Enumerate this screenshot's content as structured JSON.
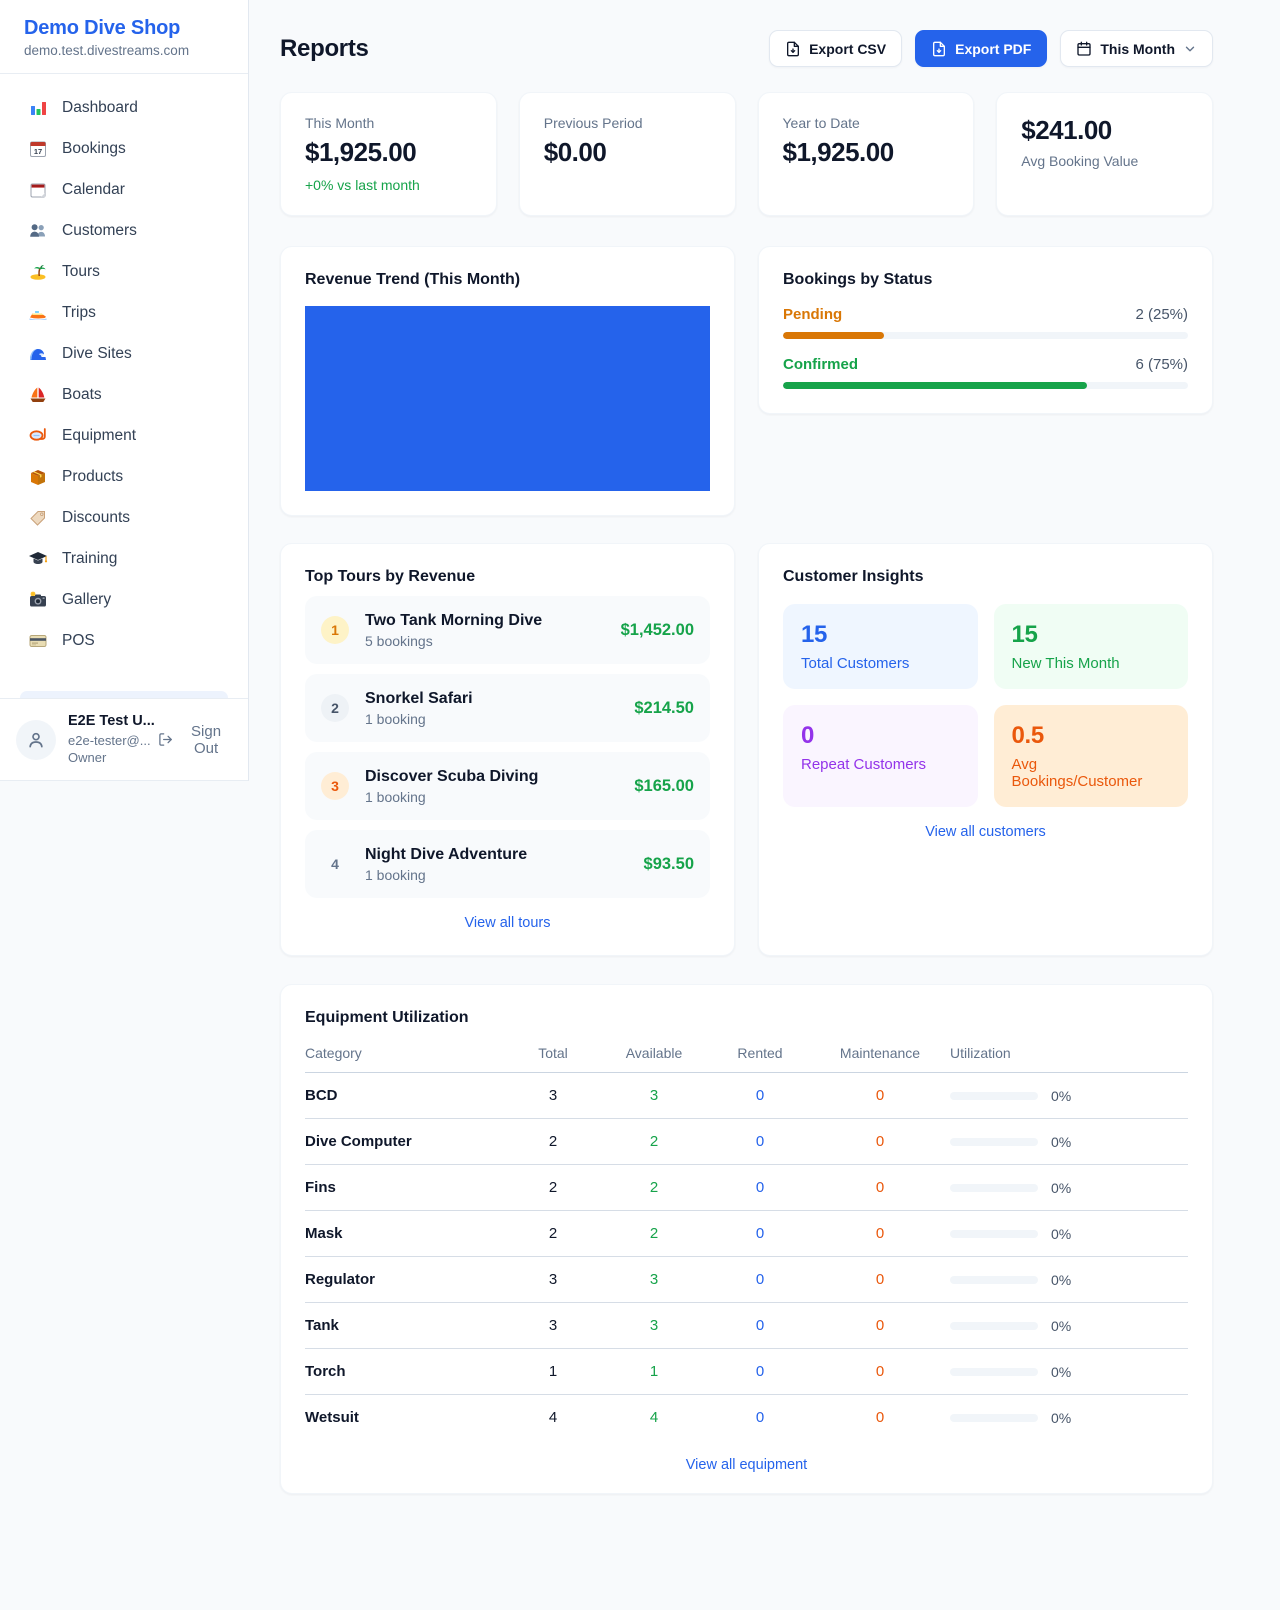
{
  "colors": {
    "accent": "#2563eb",
    "positive": "#16a34a",
    "pending": "#d97706",
    "maintenance": "#ea580c",
    "purple": "#9333ea"
  },
  "sidebar": {
    "shop_name": "Demo Dive Shop",
    "shop_domain": "demo.test.divestreams.com",
    "items": [
      {
        "label": "Dashboard",
        "icon": "bar-chart-icon"
      },
      {
        "label": "Bookings",
        "icon": "calendar-date-icon"
      },
      {
        "label": "Calendar",
        "icon": "spiral-calendar-icon"
      },
      {
        "label": "Customers",
        "icon": "people-icon"
      },
      {
        "label": "Tours",
        "icon": "island-icon"
      },
      {
        "label": "Trips",
        "icon": "speedboat-icon"
      },
      {
        "label": "Dive Sites",
        "icon": "wave-icon"
      },
      {
        "label": "Boats",
        "icon": "sailboat-icon"
      },
      {
        "label": "Equipment",
        "icon": "dive-mask-icon"
      },
      {
        "label": "Products",
        "icon": "package-icon"
      },
      {
        "label": "Discounts",
        "icon": "tag-icon"
      },
      {
        "label": "Training",
        "icon": "graduation-cap-icon"
      },
      {
        "label": "Gallery",
        "icon": "camera-icon"
      },
      {
        "label": "POS",
        "icon": "credit-card-icon"
      }
    ],
    "user": {
      "name": "E2E Test U...",
      "email": "e2e-tester@...",
      "role": "Owner",
      "sign_out_label": "Sign Out"
    }
  },
  "header": {
    "title": "Reports",
    "export_csv_label": "Export CSV",
    "export_pdf_label": "Export PDF",
    "period_label": "This Month"
  },
  "stats": [
    {
      "label": "This Month",
      "value": "$1,925.00",
      "delta": "+0% vs last month"
    },
    {
      "label": "Previous Period",
      "value": "$0.00"
    },
    {
      "label": "Year to Date",
      "value": "$1,925.00"
    },
    {
      "label": "Avg Booking Value",
      "value": "$241.00"
    }
  ],
  "revenue_trend": {
    "title": "Revenue Trend (This Month)"
  },
  "bookings_by_status": {
    "title": "Bookings by Status",
    "rows": [
      {
        "label": "Pending",
        "value": "2 (25%)",
        "pct": 25,
        "color": "#d97706"
      },
      {
        "label": "Confirmed",
        "value": "6 (75%)",
        "pct": 75,
        "color": "#16a34a"
      }
    ]
  },
  "top_tours": {
    "title": "Top Tours by Revenue",
    "rows": [
      {
        "rank": "1",
        "name": "Two Tank Morning Dive",
        "bookings": "5 bookings",
        "amount": "$1,452.00"
      },
      {
        "rank": "2",
        "name": "Snorkel Safari",
        "bookings": "1 booking",
        "amount": "$214.50"
      },
      {
        "rank": "3",
        "name": "Discover Scuba Diving",
        "bookings": "1 booking",
        "amount": "$165.00"
      },
      {
        "rank": "4",
        "name": "Night Dive Adventure",
        "bookings": "1 booking",
        "amount": "$93.50"
      }
    ],
    "view_all_label": "View all tours"
  },
  "customer_insights": {
    "title": "Customer Insights",
    "tiles": [
      {
        "value": "15",
        "label": "Total Customers"
      },
      {
        "value": "15",
        "label": "New This Month"
      },
      {
        "value": "0",
        "label": "Repeat Customers"
      },
      {
        "value": "0.5",
        "label": "Avg Bookings/Customer"
      }
    ],
    "view_all_label": "View all customers"
  },
  "equipment": {
    "title": "Equipment Utilization",
    "columns": [
      "Category",
      "Total",
      "Available",
      "Rented",
      "Maintenance",
      "Utilization"
    ],
    "rows": [
      {
        "category": "BCD",
        "total": "3",
        "available": "3",
        "rented": "0",
        "maintenance": "0",
        "utilization_pct": 0,
        "utilization_text": "0%"
      },
      {
        "category": "Dive Computer",
        "total": "2",
        "available": "2",
        "rented": "0",
        "maintenance": "0",
        "utilization_pct": 0,
        "utilization_text": "0%"
      },
      {
        "category": "Fins",
        "total": "2",
        "available": "2",
        "rented": "0",
        "maintenance": "0",
        "utilization_pct": 0,
        "utilization_text": "0%"
      },
      {
        "category": "Mask",
        "total": "2",
        "available": "2",
        "rented": "0",
        "maintenance": "0",
        "utilization_pct": 0,
        "utilization_text": "0%"
      },
      {
        "category": "Regulator",
        "total": "3",
        "available": "3",
        "rented": "0",
        "maintenance": "0",
        "utilization_pct": 0,
        "utilization_text": "0%"
      },
      {
        "category": "Tank",
        "total": "3",
        "available": "3",
        "rented": "0",
        "maintenance": "0",
        "utilization_pct": 0,
        "utilization_text": "0%"
      },
      {
        "category": "Torch",
        "total": "1",
        "available": "1",
        "rented": "0",
        "maintenance": "0",
        "utilization_pct": 0,
        "utilization_text": "0%"
      },
      {
        "category": "Wetsuit",
        "total": "4",
        "available": "4",
        "rented": "0",
        "maintenance": "0",
        "utilization_pct": 0,
        "utilization_text": "0%"
      }
    ],
    "view_all_label": "View all equipment"
  }
}
